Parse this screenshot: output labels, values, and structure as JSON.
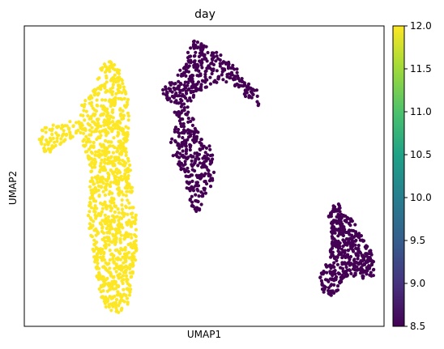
{
  "chart_data": {
    "type": "scatter",
    "title": "day",
    "xlabel": "UMAP1",
    "ylabel": "UMAP2",
    "x_ticks": [],
    "y_ticks": [],
    "grid": false,
    "colorbar": {
      "colormap": "viridis",
      "range": [
        8.5,
        12.0
      ],
      "ticks": [
        "12.0",
        "11.5",
        "11.0",
        "10.5",
        "10.0",
        "9.5",
        "9.0",
        "8.5"
      ]
    },
    "colors": {
      "day_8_5": "#440154",
      "day_12_0": "#fde725"
    },
    "clusters": [
      {
        "day": 12.0,
        "n": 1100,
        "polygon": [
          [
            126,
            78
          ],
          [
            134,
            72
          ],
          [
            144,
            80
          ],
          [
            152,
            96
          ],
          [
            158,
            122
          ],
          [
            160,
            148
          ],
          [
            158,
            166
          ],
          [
            156,
            186
          ],
          [
            160,
            200
          ],
          [
            164,
            232
          ],
          [
            168,
            264
          ],
          [
            170,
            298
          ],
          [
            166,
            330
          ],
          [
            162,
            356
          ],
          [
            158,
            380
          ],
          [
            146,
            386
          ],
          [
            132,
            382
          ],
          [
            122,
            360
          ],
          [
            118,
            330
          ],
          [
            112,
            300
          ],
          [
            108,
            270
          ],
          [
            110,
            246
          ],
          [
            112,
            210
          ],
          [
            106,
            192
          ],
          [
            98,
            160
          ],
          [
            100,
            128
          ],
          [
            110,
            118
          ],
          [
            118,
            106
          ],
          [
            122,
            94
          ]
        ]
      },
      {
        "day": 12.0,
        "n": 85,
        "polygon": [
          [
            48,
            168
          ],
          [
            52,
            156
          ],
          [
            62,
            152
          ],
          [
            74,
            156
          ],
          [
            90,
            148
          ],
          [
            102,
            150
          ],
          [
            104,
            162
          ],
          [
            92,
            170
          ],
          [
            78,
            176
          ],
          [
            66,
            186
          ],
          [
            56,
            190
          ],
          [
            48,
            182
          ]
        ]
      },
      {
        "day": 8.5,
        "n": 330,
        "polygon": [
          [
            232,
            64
          ],
          [
            240,
            48
          ],
          [
            252,
            56
          ],
          [
            266,
            62
          ],
          [
            280,
            74
          ],
          [
            292,
            84
          ],
          [
            298,
            96
          ],
          [
            308,
            104
          ],
          [
            318,
            112
          ],
          [
            322,
            134
          ],
          [
            314,
            130
          ],
          [
            302,
            118
          ],
          [
            290,
            106
          ],
          [
            276,
            100
          ],
          [
            260,
            104
          ],
          [
            246,
            114
          ],
          [
            234,
            128
          ],
          [
            220,
            130
          ],
          [
            204,
            122
          ],
          [
            200,
            112
          ],
          [
            210,
            100
          ],
          [
            220,
            90
          ],
          [
            228,
            78
          ]
        ]
      },
      {
        "day": 8.5,
        "n": 270,
        "polygon": [
          [
            224,
            130
          ],
          [
            234,
            132
          ],
          [
            240,
            150
          ],
          [
            246,
            168
          ],
          [
            258,
            178
          ],
          [
            262,
            190
          ],
          [
            266,
            212
          ],
          [
            262,
            228
          ],
          [
            256,
            240
          ],
          [
            252,
            254
          ],
          [
            246,
            266
          ],
          [
            236,
            258
          ],
          [
            232,
            242
          ],
          [
            228,
            222
          ],
          [
            222,
            206
          ],
          [
            214,
            194
          ],
          [
            210,
            178
          ],
          [
            214,
            164
          ],
          [
            220,
            150
          ],
          [
            214,
            140
          ]
        ]
      },
      {
        "day": 8.5,
        "n": 430,
        "polygon": [
          [
            410,
            250
          ],
          [
            418,
            252
          ],
          [
            424,
            264
          ],
          [
            436,
            272
          ],
          [
            442,
            286
          ],
          [
            452,
            298
          ],
          [
            458,
            310
          ],
          [
            462,
            326
          ],
          [
            462,
            342
          ],
          [
            448,
            344
          ],
          [
            432,
            340
          ],
          [
            424,
            344
          ],
          [
            418,
            358
          ],
          [
            410,
            366
          ],
          [
            400,
            362
          ],
          [
            394,
            348
          ],
          [
            398,
            330
          ],
          [
            406,
            318
          ],
          [
            410,
            300
          ],
          [
            408,
            276
          ],
          [
            404,
            262
          ]
        ]
      }
    ]
  }
}
